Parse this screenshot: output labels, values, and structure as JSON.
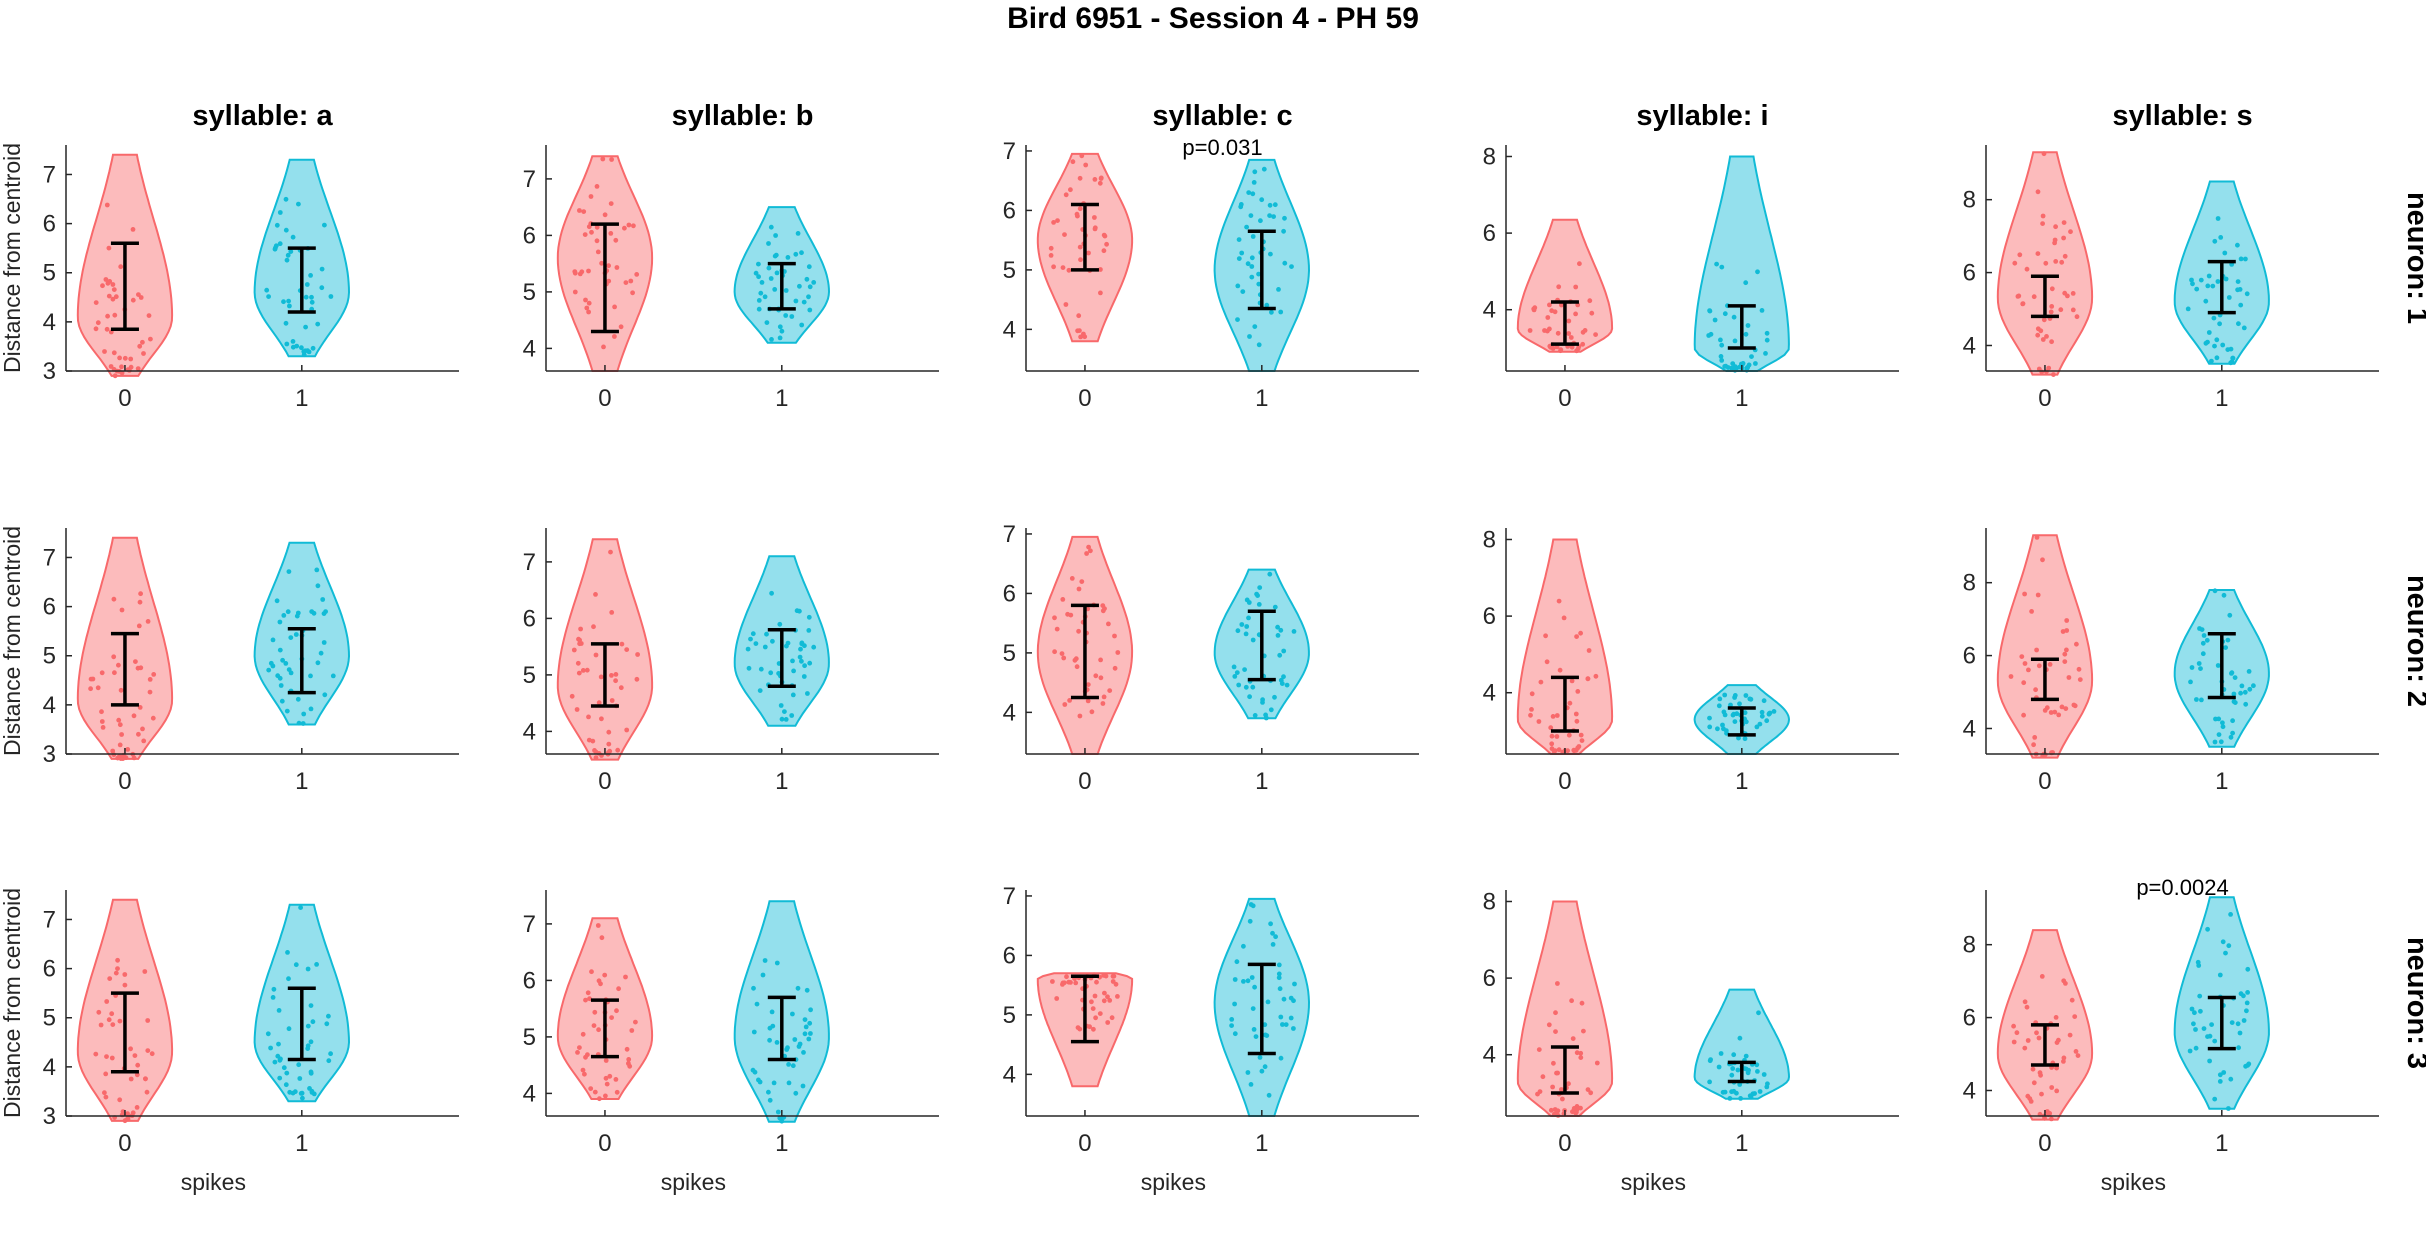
{
  "title": "Bird 6951 - Session 4 - PH 59",
  "column_titles": [
    "syllable: a",
    "syllable: b",
    "syllable: c",
    "syllable: i",
    "syllable: s"
  ],
  "row_labels": [
    "neuron: 1",
    "neuron: 2",
    "neuron: 3"
  ],
  "ylabel": "Distance from centroid",
  "xlabel": "spikes",
  "colors": {
    "spikes_0": "#f8696b",
    "spikes_1": "#11bbd6",
    "axis": "#262626",
    "errorbar": "#000000"
  },
  "chart_data": {
    "type": "violin",
    "x_categories": [
      "0",
      "1"
    ],
    "ylabel": "Distance from centroid",
    "xlabel": "spikes",
    "panels": [
      {
        "row": 0,
        "col": 0,
        "title": "syllable: a",
        "ylim": [
          3,
          7.6
        ],
        "yticks": [
          3,
          4,
          5,
          6,
          7
        ],
        "groups": [
          {
            "spikes": "0",
            "min": 2.9,
            "max": 7.4,
            "mode": 4.1,
            "mean": 4.75,
            "err_low": 3.85,
            "err_high": 5.6
          },
          {
            "spikes": "1",
            "min": 3.3,
            "max": 7.3,
            "mode": 4.6,
            "mean": 4.85,
            "err_low": 4.2,
            "err_high": 5.5
          }
        ]
      },
      {
        "row": 0,
        "col": 1,
        "title": "syllable: b",
        "ylim": [
          3.6,
          7.6
        ],
        "yticks": [
          4,
          5,
          6,
          7
        ],
        "groups": [
          {
            "spikes": "0",
            "min": 3.6,
            "max": 7.4,
            "mode": 5.6,
            "mean": 5.25,
            "err_low": 4.3,
            "err_high": 6.2
          },
          {
            "spikes": "1",
            "min": 4.1,
            "max": 6.5,
            "mode": 5.0,
            "mean": 5.1,
            "err_low": 4.7,
            "err_high": 5.5
          }
        ]
      },
      {
        "row": 0,
        "col": 2,
        "title": "syllable: c",
        "annotation": "p=0.031",
        "ylim": [
          3.3,
          7.1
        ],
        "yticks": [
          4,
          5,
          6,
          7
        ],
        "groups": [
          {
            "spikes": "0",
            "min": 3.8,
            "max": 6.95,
            "mode": 5.5,
            "mean": 5.55,
            "err_low": 5.0,
            "err_high": 6.1
          },
          {
            "spikes": "1",
            "min": 3.3,
            "max": 6.85,
            "mode": 5.0,
            "mean": 5.0,
            "err_low": 4.35,
            "err_high": 5.65
          }
        ]
      },
      {
        "row": 0,
        "col": 3,
        "title": "syllable: i",
        "ylim": [
          2.4,
          8.3
        ],
        "yticks": [
          4,
          6,
          8
        ],
        "groups": [
          {
            "spikes": "0",
            "min": 2.9,
            "max": 6.35,
            "mode": 3.5,
            "mean": 3.65,
            "err_low": 3.1,
            "err_high": 4.2
          },
          {
            "spikes": "1",
            "min": 2.4,
            "max": 8.0,
            "mode": 3.0,
            "mean": 3.55,
            "err_low": 3.0,
            "err_high": 4.1
          }
        ]
      },
      {
        "row": 0,
        "col": 4,
        "title": "syllable: s",
        "ylim": [
          3.3,
          9.5
        ],
        "yticks": [
          4,
          6,
          8
        ],
        "groups": [
          {
            "spikes": "0",
            "min": 3.2,
            "max": 9.3,
            "mode": 5.3,
            "mean": 5.35,
            "err_low": 4.8,
            "err_high": 5.9
          },
          {
            "spikes": "1",
            "min": 3.5,
            "max": 8.5,
            "mode": 5.2,
            "mean": 5.6,
            "err_low": 4.9,
            "err_high": 6.3
          }
        ]
      },
      {
        "row": 1,
        "col": 0,
        "title": "syllable: a",
        "ylim": [
          3,
          7.6
        ],
        "yticks": [
          3,
          4,
          5,
          6,
          7
        ],
        "groups": [
          {
            "spikes": "0",
            "min": 2.9,
            "max": 7.4,
            "mode": 4.1,
            "mean": 4.7,
            "err_low": 4.0,
            "err_high": 5.45
          },
          {
            "spikes": "1",
            "min": 3.6,
            "max": 7.3,
            "mode": 5.0,
            "mean": 4.9,
            "err_low": 4.25,
            "err_high": 5.55
          }
        ]
      },
      {
        "row": 1,
        "col": 1,
        "title": "syllable: b",
        "ylim": [
          3.6,
          7.6
        ],
        "yticks": [
          4,
          5,
          6,
          7
        ],
        "groups": [
          {
            "spikes": "0",
            "min": 3.5,
            "max": 7.4,
            "mode": 4.8,
            "mean": 5.0,
            "err_low": 4.45,
            "err_high": 5.55
          },
          {
            "spikes": "1",
            "min": 4.1,
            "max": 7.1,
            "mode": 5.2,
            "mean": 5.3,
            "err_low": 4.8,
            "err_high": 5.8
          }
        ]
      },
      {
        "row": 1,
        "col": 2,
        "title": "syllable: c",
        "ylim": [
          3.3,
          7.1
        ],
        "yticks": [
          4,
          5,
          6,
          7
        ],
        "groups": [
          {
            "spikes": "0",
            "min": 3.3,
            "max": 6.95,
            "mode": 5.0,
            "mean": 5.05,
            "err_low": 4.25,
            "err_high": 5.8
          },
          {
            "spikes": "1",
            "min": 3.9,
            "max": 6.4,
            "mode": 5.0,
            "mean": 5.1,
            "err_low": 4.55,
            "err_high": 5.7
          }
        ]
      },
      {
        "row": 1,
        "col": 3,
        "title": "syllable: i",
        "ylim": [
          2.4,
          8.3
        ],
        "yticks": [
          4,
          6,
          8
        ],
        "groups": [
          {
            "spikes": "0",
            "min": 2.4,
            "max": 8.0,
            "mode": 3.3,
            "mean": 3.7,
            "err_low": 3.0,
            "err_high": 4.4
          },
          {
            "spikes": "1",
            "min": 2.4,
            "max": 4.2,
            "mode": 3.3,
            "mean": 3.25,
            "err_low": 2.9,
            "err_high": 3.6
          }
        ]
      },
      {
        "row": 1,
        "col": 4,
        "title": "syllable: s",
        "ylim": [
          3.3,
          9.5
        ],
        "yticks": [
          4,
          6,
          8
        ],
        "groups": [
          {
            "spikes": "0",
            "min": 3.2,
            "max": 9.3,
            "mode": 5.3,
            "mean": 5.35,
            "err_low": 4.8,
            "err_high": 5.9
          },
          {
            "spikes": "1",
            "min": 3.5,
            "max": 7.8,
            "mode": 5.5,
            "mean": 5.75,
            "err_low": 4.85,
            "err_high": 6.6
          }
        ]
      },
      {
        "row": 2,
        "col": 0,
        "title": "syllable: a",
        "ylim": [
          3,
          7.6
        ],
        "yticks": [
          3,
          4,
          5,
          6,
          7
        ],
        "groups": [
          {
            "spikes": "0",
            "min": 2.9,
            "max": 7.4,
            "mode": 4.3,
            "mean": 4.7,
            "err_low": 3.9,
            "err_high": 5.5
          },
          {
            "spikes": "1",
            "min": 3.3,
            "max": 7.3,
            "mode": 4.5,
            "mean": 4.85,
            "err_low": 4.15,
            "err_high": 5.6
          }
        ]
      },
      {
        "row": 2,
        "col": 1,
        "title": "syllable: b",
        "ylim": [
          3.6,
          7.6
        ],
        "yticks": [
          4,
          5,
          6,
          7
        ],
        "groups": [
          {
            "spikes": "0",
            "min": 3.9,
            "max": 7.1,
            "mode": 5.0,
            "mean": 5.15,
            "err_low": 4.65,
            "err_high": 5.65
          },
          {
            "spikes": "1",
            "min": 3.5,
            "max": 7.4,
            "mode": 5.0,
            "mean": 5.15,
            "err_low": 4.6,
            "err_high": 5.7
          }
        ]
      },
      {
        "row": 2,
        "col": 2,
        "title": "syllable: c",
        "ylim": [
          3.3,
          7.1
        ],
        "yticks": [
          4,
          5,
          6,
          7
        ],
        "groups": [
          {
            "spikes": "0",
            "min": 3.8,
            "max": 5.7,
            "mode": 5.6,
            "mean": 5.1,
            "err_low": 4.55,
            "err_high": 5.65
          },
          {
            "spikes": "1",
            "min": 3.3,
            "max": 6.95,
            "mode": 5.2,
            "mean": 5.1,
            "err_low": 4.35,
            "err_high": 5.85
          }
        ]
      },
      {
        "row": 2,
        "col": 3,
        "title": "syllable: i",
        "ylim": [
          2.4,
          8.3
        ],
        "yticks": [
          4,
          6,
          8
        ],
        "groups": [
          {
            "spikes": "0",
            "min": 2.4,
            "max": 8.0,
            "mode": 3.3,
            "mean": 3.6,
            "err_low": 3.0,
            "err_high": 4.2
          },
          {
            "spikes": "1",
            "min": 2.85,
            "max": 5.7,
            "mode": 3.4,
            "mean": 3.55,
            "err_low": 3.3,
            "err_high": 3.8
          }
        ]
      },
      {
        "row": 2,
        "col": 4,
        "title": "syllable: s",
        "annotation": "p=0.0024",
        "ylim": [
          3.3,
          9.5
        ],
        "yticks": [
          4,
          6,
          8
        ],
        "groups": [
          {
            "spikes": "0",
            "min": 3.2,
            "max": 8.4,
            "mode": 5.0,
            "mean": 5.25,
            "err_low": 4.7,
            "err_high": 5.8
          },
          {
            "spikes": "1",
            "min": 3.5,
            "max": 9.3,
            "mode": 5.6,
            "mean": 5.85,
            "err_low": 5.15,
            "err_high": 6.55
          }
        ]
      }
    ]
  }
}
